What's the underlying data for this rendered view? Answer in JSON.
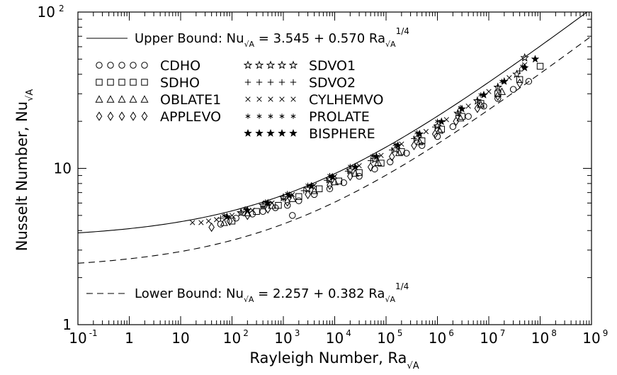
{
  "chart_data": {
    "type": "scatter",
    "xscale": "log",
    "yscale": "log",
    "xlim": [
      0.1,
      1000000000
    ],
    "ylim": [
      1,
      100
    ],
    "xlabel": "Rayleigh Number, Ra",
    "xlabel_sub": "√A",
    "ylabel": "Nusselt Number, Nu",
    "ylabel_sub": "√A",
    "x_ticks": [
      {
        "value": 0.1,
        "base": "10",
        "exp": "-1"
      },
      {
        "value": 1,
        "base": "1",
        "exp": ""
      },
      {
        "value": 10,
        "base": "10",
        "exp": ""
      },
      {
        "value": 100,
        "base": "10",
        "exp": "2"
      },
      {
        "value": 1000,
        "base": "10",
        "exp": "3"
      },
      {
        "value": 10000,
        "base": "10",
        "exp": "4"
      },
      {
        "value": 100000,
        "base": "10",
        "exp": "5"
      },
      {
        "value": 1000000,
        "base": "10",
        "exp": "6"
      },
      {
        "value": 10000000,
        "base": "10",
        "exp": "7"
      },
      {
        "value": 100000000,
        "base": "10",
        "exp": "8"
      },
      {
        "value": 1000000000,
        "base": "10",
        "exp": "9"
      }
    ],
    "y_ticks": [
      {
        "value": 1,
        "base": "1",
        "exp": ""
      },
      {
        "value": 10,
        "base": "10",
        "exp": ""
      },
      {
        "value": 100,
        "base": "10",
        "exp": "2"
      }
    ],
    "curves": [
      {
        "name": "Upper Bound",
        "style": "solid",
        "a": 3.545,
        "b": 0.57,
        "label_prefix": "Upper Bound:  Nu",
        "label_sub": "√A",
        "label_mid": " = 3.545 + 0.570 Ra",
        "label_sub2": "√A",
        "label_exp": "1/4"
      },
      {
        "name": "Lower Bound",
        "style": "dashed",
        "a": 2.257,
        "b": 0.382,
        "label_prefix": "Lower Bound:  Nu",
        "label_sub": "√A",
        "label_mid": " = 2.257 + 0.382 Ra",
        "label_sub2": "√A",
        "label_exp": "1/4"
      }
    ],
    "series": [
      {
        "name": "CDHO",
        "marker": "circle",
        "points": [
          [
            60,
            4.4
          ],
          [
            120,
            4.8
          ],
          [
            250,
            5.1
          ],
          [
            400,
            5.3
          ],
          [
            700,
            5.6
          ],
          [
            1200,
            5.8
          ],
          [
            2000,
            6.2
          ],
          [
            4000,
            6.8
          ],
          [
            8000,
            7.4
          ],
          [
            15000,
            8.1
          ],
          [
            30000,
            8.9
          ],
          [
            60000,
            9.9
          ],
          [
            120000,
            11.0
          ],
          [
            250000,
            12.5
          ],
          [
            500000,
            14.0
          ],
          [
            1000000,
            16.0
          ],
          [
            2000000,
            18.5
          ],
          [
            4000000,
            21.5
          ],
          [
            8000000,
            25.0
          ],
          [
            15000000,
            28.0
          ],
          [
            30000000,
            32.0
          ],
          [
            60000000,
            36.0
          ],
          [
            1500,
            5.0
          ]
        ]
      },
      {
        "name": "SDHO",
        "marker": "square",
        "points": [
          [
            100,
            4.6
          ],
          [
            300,
            5.3
          ],
          [
            800,
            5.8
          ],
          [
            2000,
            6.6
          ],
          [
            5000,
            7.4
          ],
          [
            12000,
            8.3
          ],
          [
            30000,
            9.4
          ],
          [
            80000,
            10.8
          ],
          [
            200000,
            12.8
          ],
          [
            500000,
            15.0
          ],
          [
            1200000,
            17.8
          ],
          [
            3000000,
            21.5
          ],
          [
            7000000,
            26.0
          ],
          [
            15000000,
            30.0
          ],
          [
            40000000,
            37.0
          ],
          [
            100000000,
            45.0
          ]
        ]
      },
      {
        "name": "OBLATE1",
        "marker": "triangle",
        "points": [
          [
            70,
            4.5
          ],
          [
            200,
            5.2
          ],
          [
            600,
            5.8
          ],
          [
            1500,
            6.4
          ],
          [
            4000,
            7.2
          ],
          [
            10000,
            8.2
          ],
          [
            25000,
            9.3
          ],
          [
            70000,
            10.9
          ],
          [
            180000,
            12.6
          ],
          [
            450000,
            14.8
          ],
          [
            1100000,
            17.5
          ],
          [
            2800000,
            21.0
          ],
          [
            7000000,
            25.5
          ],
          [
            18000000,
            31.0
          ]
        ]
      },
      {
        "name": "APPLEVO",
        "marker": "diamond",
        "points": [
          [
            40,
            4.2
          ],
          [
            90,
            4.6
          ],
          [
            200,
            5.0
          ],
          [
            500,
            5.5
          ],
          [
            1200,
            6.1
          ],
          [
            3000,
            6.8
          ],
          [
            8000,
            7.8
          ],
          [
            20000,
            8.9
          ],
          [
            50000,
            10.2
          ],
          [
            130000,
            11.9
          ],
          [
            350000,
            14.0
          ],
          [
            900000,
            16.6
          ],
          [
            2300000,
            20.0
          ],
          [
            6000000,
            24.2
          ],
          [
            15000000,
            29.0
          ],
          [
            40000000,
            35.0
          ]
        ]
      },
      {
        "name": "SDVO1",
        "marker": "star-open",
        "points": [
          [
            150,
            5.2
          ],
          [
            400,
            5.8
          ],
          [
            1000,
            6.5
          ],
          [
            3000,
            7.4
          ],
          [
            8000,
            8.5
          ],
          [
            20000,
            9.7
          ],
          [
            60000,
            11.4
          ],
          [
            150000,
            13.2
          ],
          [
            400000,
            15.6
          ],
          [
            1000000,
            18.6
          ],
          [
            2500000,
            22.5
          ],
          [
            6000000,
            27.0
          ],
          [
            15000000,
            33.0
          ],
          [
            35000000,
            40.0
          ],
          [
            50000000,
            51.0
          ]
        ]
      },
      {
        "name": "SDVO2",
        "marker": "plus",
        "points": [
          [
            60,
            4.8
          ],
          [
            150,
            5.2
          ],
          [
            400,
            5.7
          ],
          [
            1000,
            6.4
          ],
          [
            2500,
            7.2
          ],
          [
            7000,
            8.4
          ],
          [
            18000,
            9.6
          ],
          [
            50000,
            11.2
          ],
          [
            130000,
            13.1
          ],
          [
            350000,
            15.5
          ],
          [
            900000,
            18.4
          ],
          [
            2500000,
            22.5
          ],
          [
            6000000,
            27.5
          ],
          [
            15000000,
            33.5
          ],
          [
            40000000,
            42.0
          ]
        ]
      },
      {
        "name": "CYLHEMVO",
        "marker": "cross",
        "points": [
          [
            17,
            4.5
          ],
          [
            25,
            4.5
          ],
          [
            35,
            4.6
          ],
          [
            50,
            4.7
          ],
          [
            100,
            5.0
          ],
          [
            250,
            5.4
          ],
          [
            600,
            6.0
          ],
          [
            1500,
            6.8
          ],
          [
            4000,
            7.8
          ],
          [
            10000,
            8.9
          ],
          [
            30000,
            10.4
          ],
          [
            80000,
            12.1
          ],
          [
            200000,
            14.3
          ],
          [
            600000,
            17.2
          ],
          [
            1500000,
            20.5
          ],
          [
            4000000,
            25.0
          ],
          [
            10000000,
            31.0
          ],
          [
            25000000,
            38.0
          ],
          [
            50000000,
            46.0
          ]
        ]
      },
      {
        "name": "PROLATE",
        "marker": "asterisk",
        "points": [
          [
            70,
            5.0
          ],
          [
            180,
            5.5
          ],
          [
            450,
            6.1
          ],
          [
            1200,
            6.9
          ],
          [
            3000,
            7.8
          ],
          [
            8000,
            9.0
          ],
          [
            20000,
            10.3
          ],
          [
            55000,
            12.0
          ],
          [
            150000,
            14.2
          ],
          [
            400000,
            16.9
          ],
          [
            1000000,
            20.0
          ],
          [
            2800000,
            24.5
          ],
          [
            7000000,
            29.5
          ],
          [
            18000000,
            36.0
          ],
          [
            45000000,
            45.0
          ]
        ]
      },
      {
        "name": "BISPHERE",
        "marker": "star-filled",
        "points": [
          [
            80,
            4.9
          ],
          [
            200,
            5.4
          ],
          [
            500,
            6.0
          ],
          [
            1300,
            6.7
          ],
          [
            3500,
            7.7
          ],
          [
            9000,
            8.8
          ],
          [
            25000,
            10.2
          ],
          [
            65000,
            11.9
          ],
          [
            170000,
            14.0
          ],
          [
            450000,
            16.6
          ],
          [
            1200000,
            19.9
          ],
          [
            3000000,
            24.0
          ],
          [
            8000000,
            29.5
          ],
          [
            20000000,
            36.0
          ],
          [
            50000000,
            44.0
          ],
          [
            80000000,
            50.0
          ]
        ]
      }
    ]
  }
}
